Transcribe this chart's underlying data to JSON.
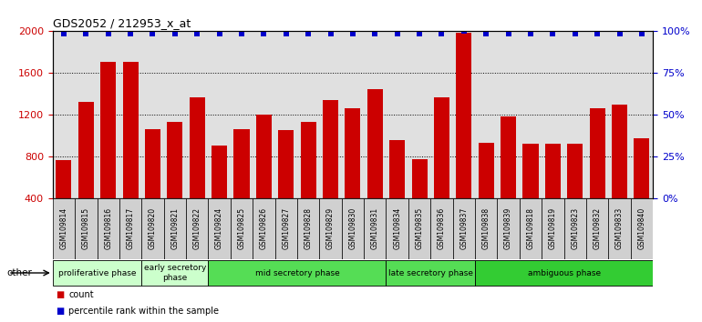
{
  "title": "GDS2052 / 212953_x_at",
  "samples": [
    "GSM109814",
    "GSM109815",
    "GSM109816",
    "GSM109817",
    "GSM109820",
    "GSM109821",
    "GSM109822",
    "GSM109824",
    "GSM109825",
    "GSM109826",
    "GSM109827",
    "GSM109828",
    "GSM109829",
    "GSM109830",
    "GSM109831",
    "GSM109834",
    "GSM109835",
    "GSM109836",
    "GSM109837",
    "GSM109838",
    "GSM109839",
    "GSM109818",
    "GSM109819",
    "GSM109823",
    "GSM109832",
    "GSM109833",
    "GSM109840"
  ],
  "counts": [
    760,
    1320,
    1700,
    1700,
    1060,
    1130,
    1360,
    900,
    1060,
    1200,
    1050,
    1130,
    1340,
    1260,
    1440,
    950,
    770,
    1360,
    1980,
    930,
    1180,
    920,
    920,
    920,
    1260,
    1290,
    970
  ],
  "percentiles": [
    98,
    98,
    98,
    98,
    98,
    98,
    98,
    98,
    98,
    98,
    98,
    98,
    98,
    98,
    98,
    98,
    98,
    98,
    100,
    98,
    98,
    98,
    98,
    98,
    98,
    98,
    98
  ],
  "phases": [
    {
      "label": "proliferative phase",
      "start": 0,
      "end": 4,
      "color": "#ccffcc"
    },
    {
      "label": "early secretory\nphase",
      "start": 4,
      "end": 7,
      "color": "#ccffcc"
    },
    {
      "label": "mid secretory phase",
      "start": 7,
      "end": 15,
      "color": "#66dd66"
    },
    {
      "label": "late secretory phase",
      "start": 15,
      "end": 19,
      "color": "#66dd66"
    },
    {
      "label": "ambiguous phase",
      "start": 19,
      "end": 27,
      "color": "#44cc44"
    }
  ],
  "ylim_left": [
    400,
    2000
  ],
  "yticks_left": [
    400,
    800,
    1200,
    1600,
    2000
  ],
  "ylim_right": [
    0,
    100
  ],
  "yticks_right": [
    0,
    25,
    50,
    75,
    100
  ],
  "bar_color": "#cc0000",
  "dot_color": "#0000cc",
  "bg_color": "#e0e0e0",
  "tick_bg_color": "#d0d0d0",
  "grid_color": "#000000",
  "grid_linestyle": "dotted"
}
